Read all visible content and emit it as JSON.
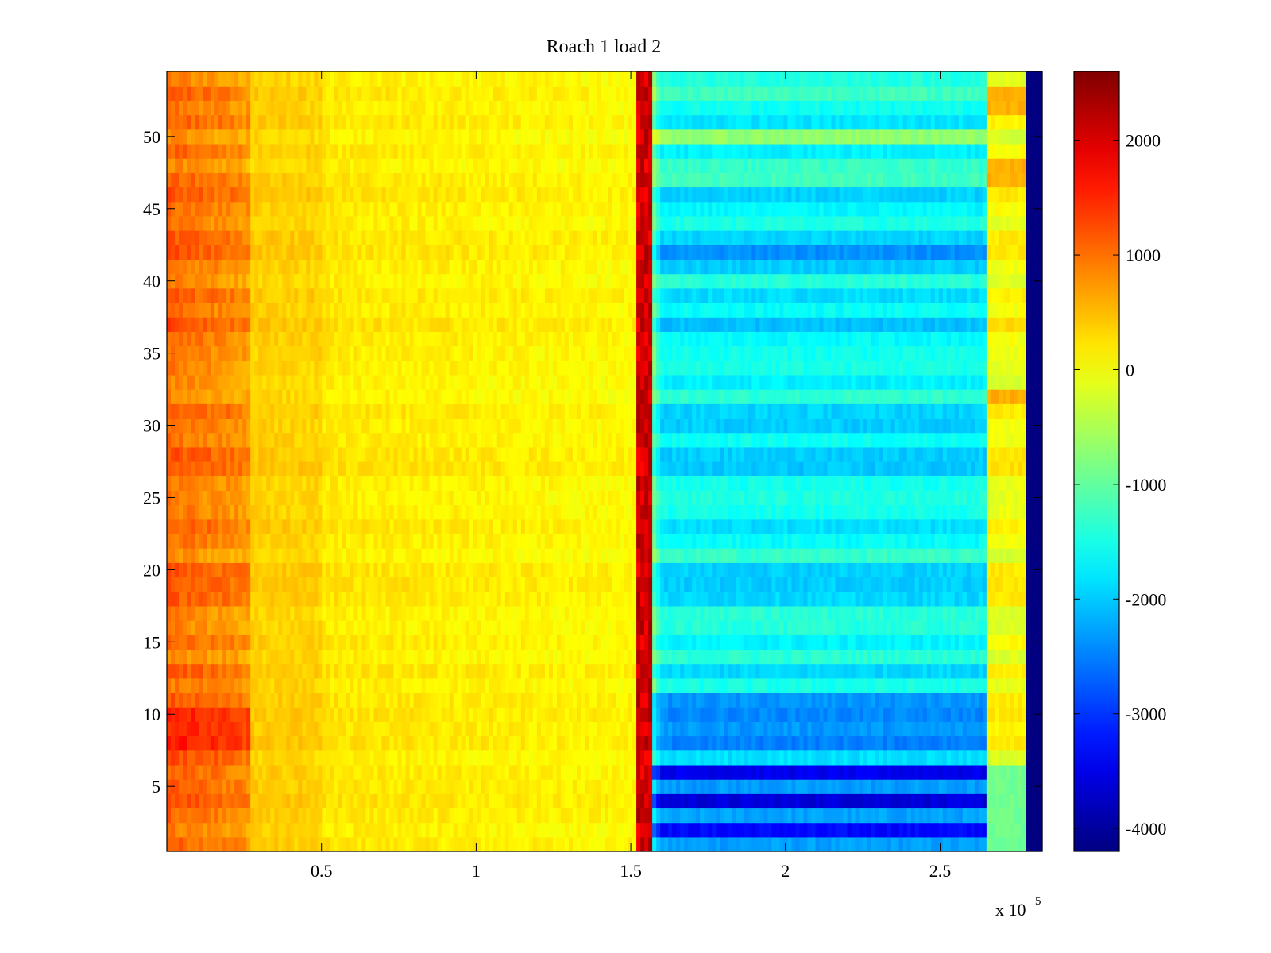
{
  "chart_data": {
    "type": "heatmap",
    "title": "Roach 1 load 2",
    "xlabel": "",
    "ylabel": "",
    "xlim": [
      0,
      283000
    ],
    "ylim": [
      0.5,
      54.5
    ],
    "x_multiplier_label": "x 10",
    "x_multiplier_exponent": "5",
    "x_ticks": [
      {
        "value": 50000,
        "label": "0.5"
      },
      {
        "value": 100000,
        "label": "1"
      },
      {
        "value": 150000,
        "label": "1.5"
      },
      {
        "value": 200000,
        "label": "2"
      },
      {
        "value": 250000,
        "label": "2.5"
      }
    ],
    "y_ticks": [
      {
        "value": 5,
        "label": "5"
      },
      {
        "value": 10,
        "label": "10"
      },
      {
        "value": 15,
        "label": "15"
      },
      {
        "value": 20,
        "label": "20"
      },
      {
        "value": 25,
        "label": "25"
      },
      {
        "value": 30,
        "label": "30"
      },
      {
        "value": 35,
        "label": "35"
      },
      {
        "value": 40,
        "label": "40"
      },
      {
        "value": 45,
        "label": "45"
      },
      {
        "value": 50,
        "label": "50"
      }
    ],
    "rows": 54,
    "colorbar": {
      "colormap": "jet",
      "clim": [
        -4200,
        2600
      ],
      "ticks": [
        {
          "value": 2000,
          "label": "2000"
        },
        {
          "value": 1000,
          "label": "1000"
        },
        {
          "value": 0,
          "label": "0"
        },
        {
          "value": -1000,
          "label": "-1000"
        },
        {
          "value": -2000,
          "label": "-2000"
        },
        {
          "value": -3000,
          "label": "-3000"
        },
        {
          "value": -4000,
          "label": "-4000"
        }
      ]
    },
    "segments": [
      {
        "x": [
          0,
          27000
        ],
        "value_range": [
          500,
          1600
        ],
        "description_level": "orange"
      },
      {
        "x": [
          27000,
          152000
        ],
        "value_range": [
          -100,
          400
        ],
        "description_level": "yellow"
      },
      {
        "x": [
          152000,
          157000
        ],
        "value_range": [
          1600,
          2600
        ],
        "description_level": "red"
      },
      {
        "x": [
          157000,
          265000
        ],
        "value_range": [
          -3800,
          -400
        ],
        "description_level": "cyan-green"
      },
      {
        "x": [
          265000,
          278000
        ],
        "value_range": [
          -800,
          800
        ],
        "description_level": "yellow-green"
      },
      {
        "x": [
          278000,
          283000
        ],
        "value_range": [
          -4200,
          -4200
        ],
        "description_level": "dark-blue"
      }
    ],
    "grid": false,
    "legend": "none"
  }
}
